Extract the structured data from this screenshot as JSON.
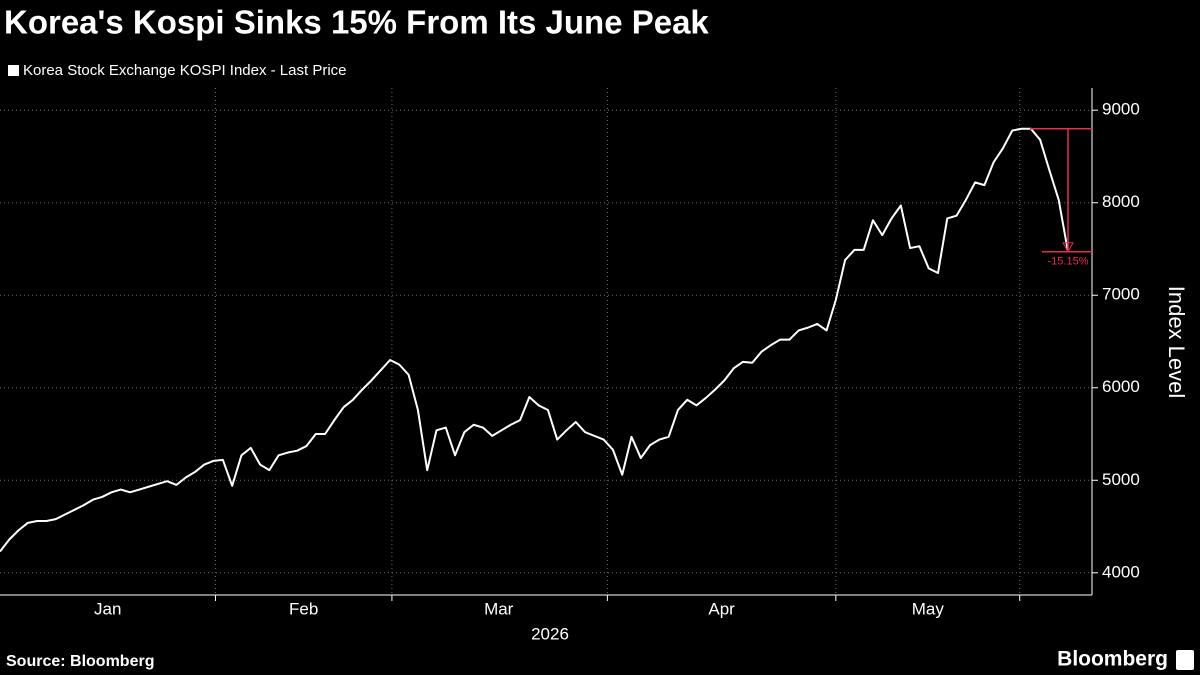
{
  "chart_data": {
    "type": "line",
    "title": "Korea's Kospi Sinks 15% From Its June Peak",
    "ylabel": "Index Level",
    "xlabel": "2026",
    "source": "Source: Bloomberg",
    "brand": "Bloomberg",
    "series": [
      {
        "name": "Korea Stock Exchange KOSPI Index - Last Price",
        "color": "#ffffff",
        "values": [
          4230,
          4360,
          4460,
          4540,
          4560,
          4560,
          4580,
          4630,
          4680,
          4730,
          4790,
          4820,
          4870,
          4900,
          4870,
          4900,
          4930,
          4960,
          4990,
          4950,
          5030,
          5090,
          5170,
          5210,
          5220,
          4940,
          5270,
          5350,
          5170,
          5110,
          5270,
          5300,
          5320,
          5370,
          5500,
          5500,
          5650,
          5790,
          5870,
          5980,
          6080,
          6190,
          6300,
          6250,
          6140,
          5760,
          5110,
          5540,
          5570,
          5270,
          5520,
          5600,
          5570,
          5480,
          5540,
          5600,
          5650,
          5900,
          5810,
          5760,
          5440,
          5540,
          5630,
          5520,
          5480,
          5440,
          5330,
          5060,
          5470,
          5240,
          5380,
          5440,
          5470,
          5760,
          5870,
          5810,
          5890,
          5980,
          6080,
          6210,
          6280,
          6270,
          6390,
          6460,
          6520,
          6520,
          6620,
          6650,
          6690,
          6620,
          6950,
          7380,
          7490,
          7490,
          7810,
          7650,
          7830,
          7970,
          7510,
          7530,
          7290,
          7240,
          7830,
          7860,
          8030,
          8220,
          8190,
          8440,
          8590,
          8780,
          8800,
          8800,
          8680,
          8350,
          8030,
          7470
        ]
      }
    ],
    "xlim": [
      0,
      115
    ],
    "xticks": [
      23.2,
      42.2,
      65.4,
      90,
      109.8
    ],
    "month_labels": [
      {
        "value": 11.6,
        "label": "Jan"
      },
      {
        "value": 32.7,
        "label": "Feb"
      },
      {
        "value": 53.7,
        "label": "Mar"
      },
      {
        "value": 77.7,
        "label": "Apr"
      },
      {
        "value": 99.9,
        "label": "May"
      }
    ],
    "ylim": [
      3760,
      9240
    ],
    "yticks": [
      4000,
      5000,
      6000,
      7000,
      8000,
      9000
    ],
    "grid": true,
    "annotation": {
      "text": "-15.15%",
      "high": 8800,
      "low": 7470,
      "color": "#e0304a"
    }
  }
}
